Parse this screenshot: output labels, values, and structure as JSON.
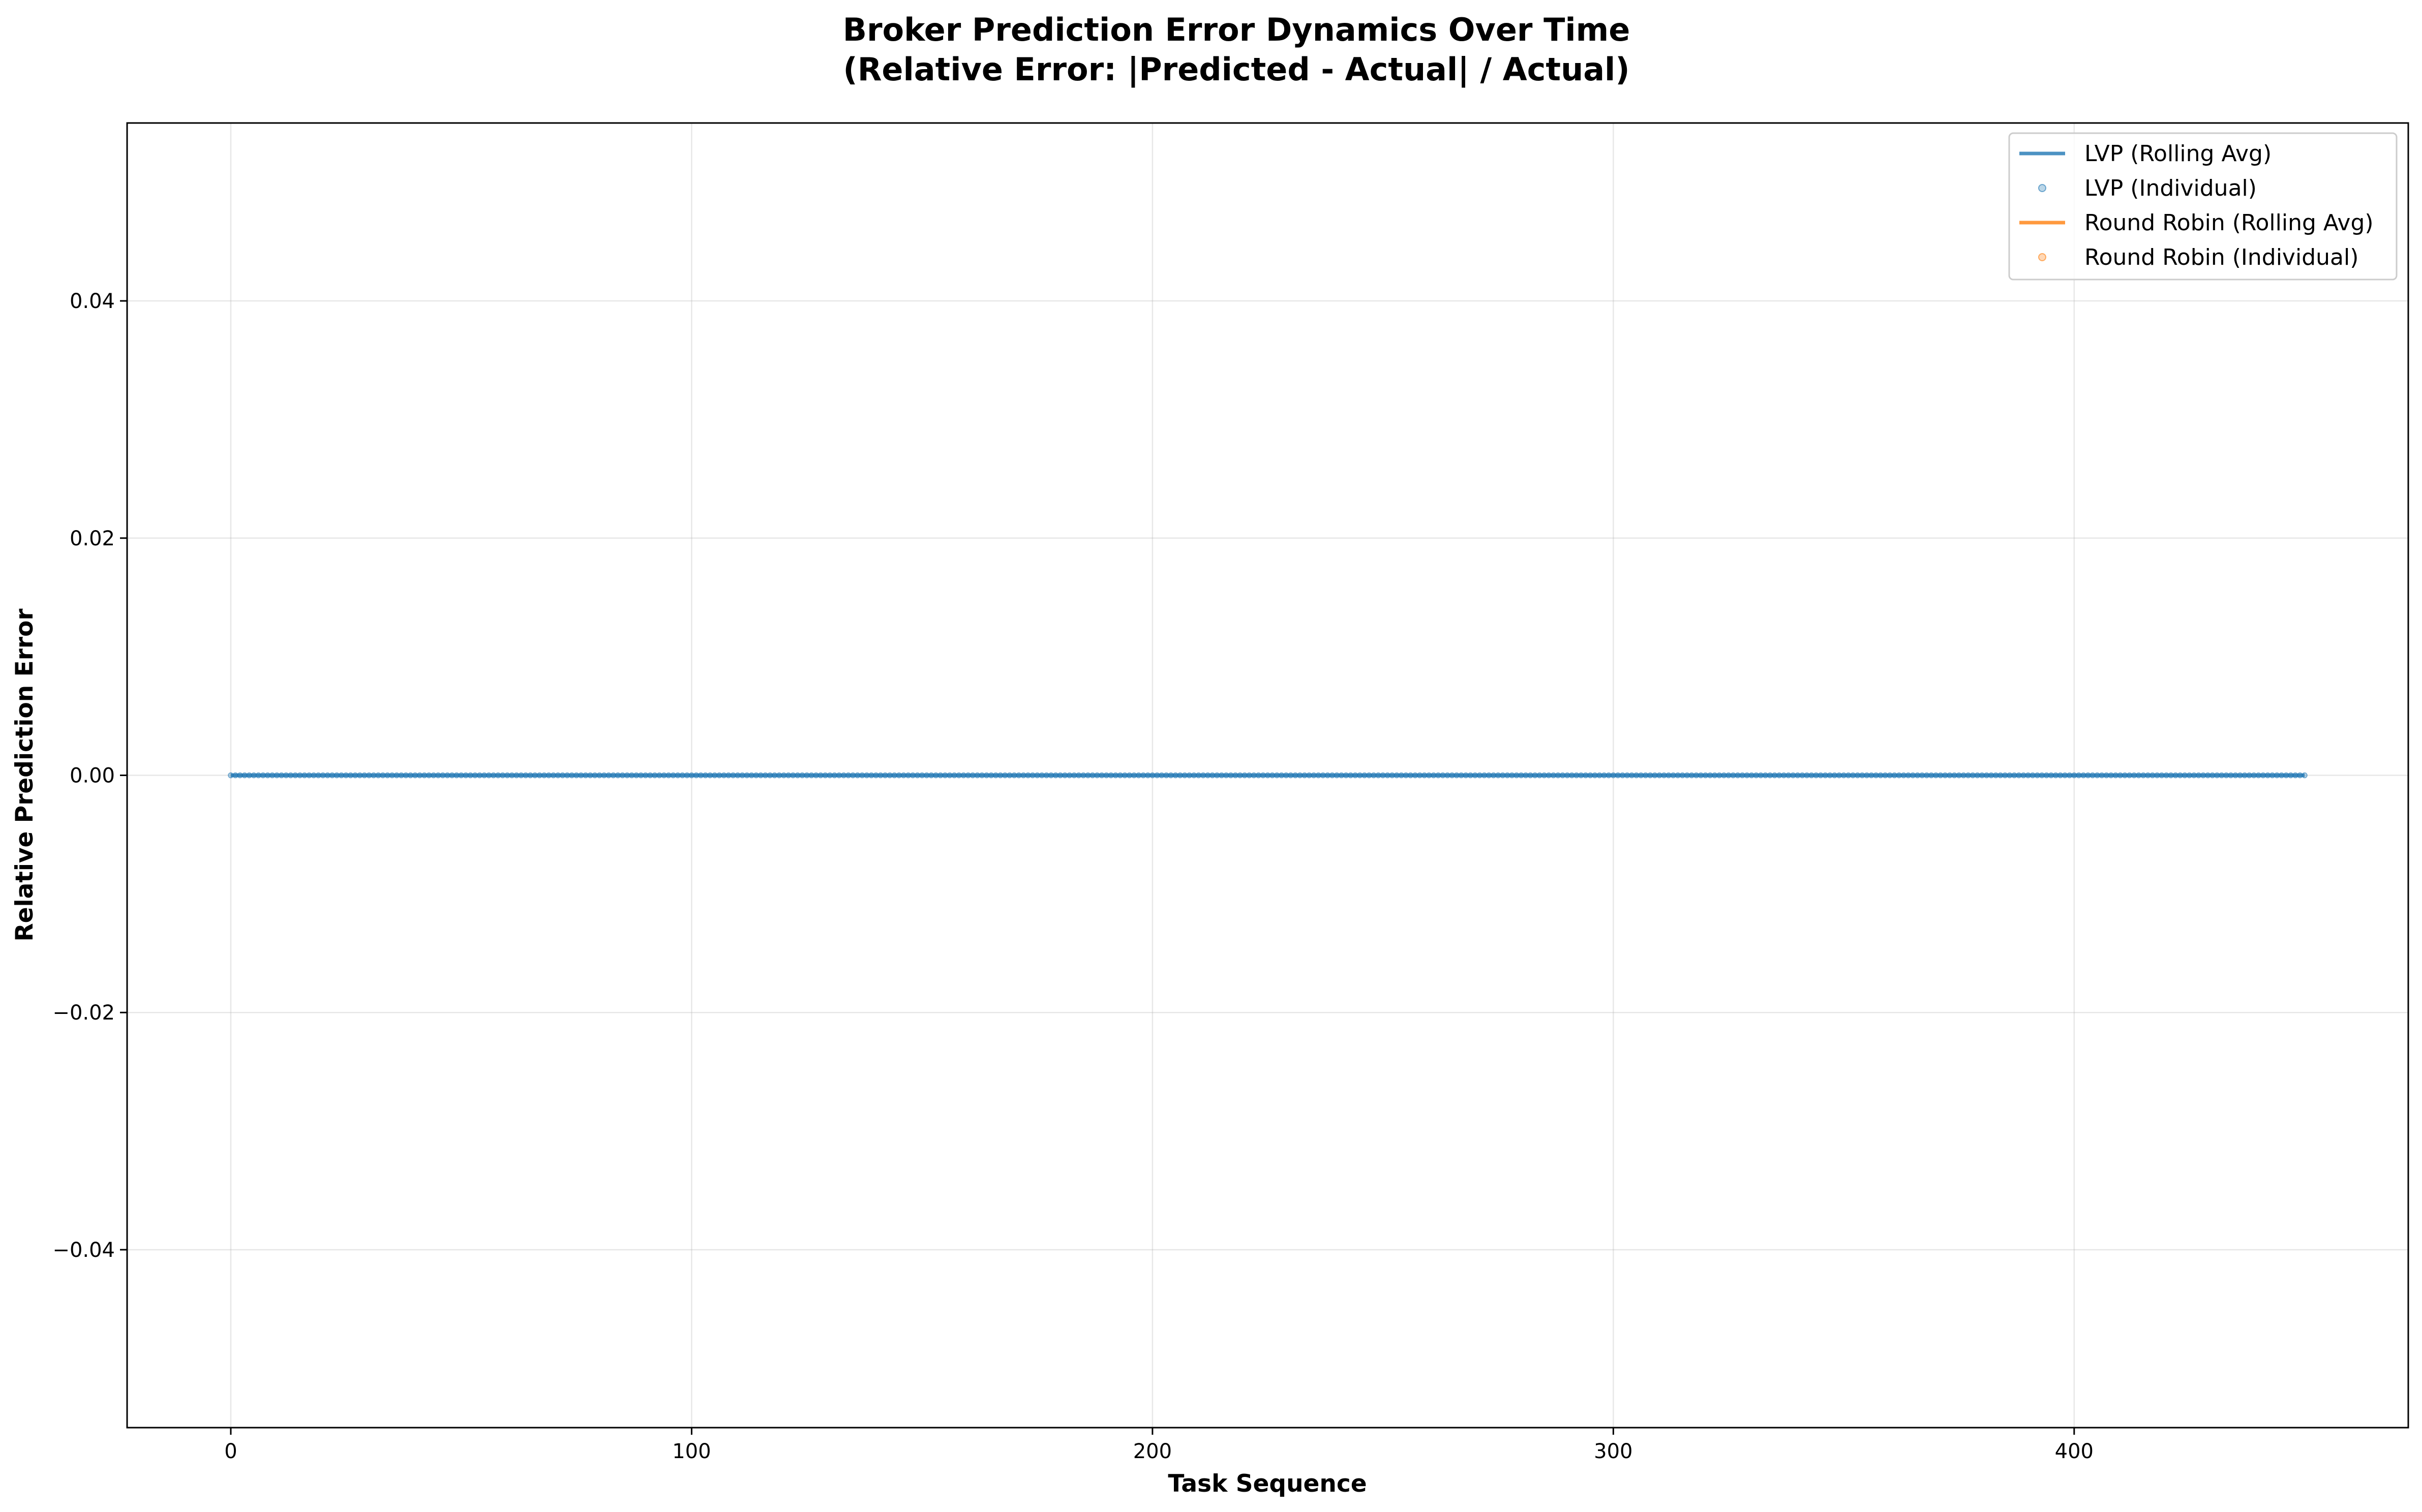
{
  "chart_data": {
    "type": "line",
    "title_lines": [
      "Broker Prediction Error Dynamics Over Time",
      "(Relative Error: |Predicted - Actual| / Actual)"
    ],
    "xlabel": "Task Sequence",
    "ylabel": "Relative Prediction Error",
    "xlim": [
      -22.5,
      472.5
    ],
    "ylim": [
      -0.055,
      0.055
    ],
    "x_ticks": [
      0,
      100,
      200,
      300,
      400
    ],
    "x_tick_labels": [
      "0",
      "100",
      "200",
      "300",
      "400"
    ],
    "y_ticks": [
      -0.04,
      -0.02,
      0.0,
      0.02,
      0.04
    ],
    "y_tick_labels": [
      "−0.04",
      "−0.02",
      "0.00",
      "0.02",
      "0.04"
    ],
    "grid": true,
    "legend_position": "top-right",
    "series": [
      {
        "name": "LVP (Rolling Avg)",
        "kind": "line",
        "color": "#1f77b4",
        "x_range": [
          0,
          450
        ],
        "value": 0.0
      },
      {
        "name": "LVP (Individual)",
        "kind": "scatter",
        "color": "#1f77b4",
        "x_range": [
          0,
          450
        ],
        "value": 0.0
      },
      {
        "name": "Round Robin (Rolling Avg)",
        "kind": "line",
        "color": "#ff7f0e",
        "x_range": [],
        "value": null
      },
      {
        "name": "Round Robin (Individual)",
        "kind": "scatter",
        "color": "#ff7f0e",
        "x_range": [],
        "value": null
      }
    ]
  }
}
